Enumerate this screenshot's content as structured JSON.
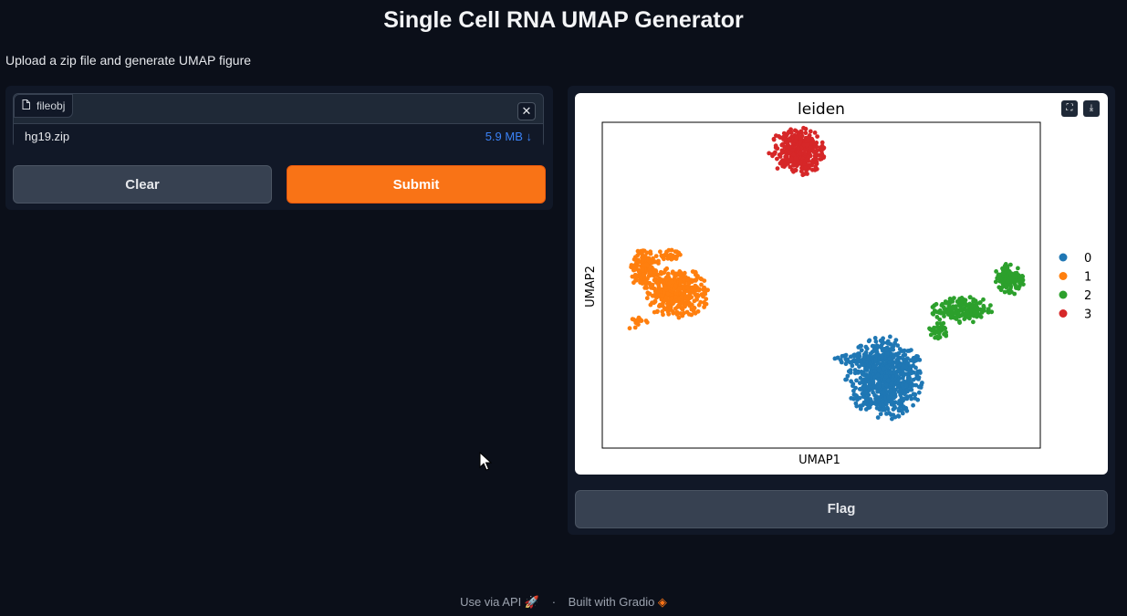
{
  "header": {
    "title": "Single Cell RNA UMAP Generator",
    "description": "Upload a zip file and generate UMAP figure"
  },
  "file_input": {
    "label": "fileobj",
    "file_name": "hg19.zip",
    "file_size": "5.9 MB",
    "download_icon": "download-arrow-icon",
    "clear_icon": "close-icon"
  },
  "buttons": {
    "clear": "Clear",
    "submit": "Submit",
    "flag": "Flag"
  },
  "colors": {
    "accent": "#f97316",
    "background": "#0b0f19",
    "panel": "#111827"
  },
  "output": {
    "fullscreen_icon": "fullscreen-icon",
    "download_icon": "download-icon"
  },
  "chart_data": {
    "type": "scatter",
    "title": "leiden",
    "xlabel": "UMAP1",
    "ylabel": "UMAP2",
    "grid": false,
    "xticks": false,
    "yticks": false,
    "legend_placement": "right",
    "xlim": [
      -10,
      10
    ],
    "ylim": [
      -10,
      10
    ],
    "series": [
      {
        "name": "0",
        "color": "#1f77b4",
        "clusters": [
          {
            "cx": 2.9,
            "cy": -5.7,
            "rx": 1.8,
            "ry": 2.6,
            "n": 700
          },
          {
            "cx": 1.4,
            "cy": -4.6,
            "rx": 0.8,
            "ry": 0.5,
            "n": 40
          }
        ]
      },
      {
        "name": "1",
        "color": "#ff7f0e",
        "clusters": [
          {
            "cx": -6.6,
            "cy": -0.5,
            "rx": 1.5,
            "ry": 1.6,
            "n": 380
          },
          {
            "cx": -8.1,
            "cy": 1.1,
            "rx": 0.7,
            "ry": 1.3,
            "n": 150
          },
          {
            "cx": -8.5,
            "cy": -2.3,
            "rx": 0.6,
            "ry": 0.4,
            "n": 15
          },
          {
            "cx": -7.0,
            "cy": 1.8,
            "rx": 0.6,
            "ry": 0.4,
            "n": 30
          }
        ]
      },
      {
        "name": "2",
        "color": "#2ca02c",
        "clusters": [
          {
            "cx": 6.4,
            "cy": -1.5,
            "rx": 1.4,
            "ry": 0.9,
            "n": 170
          },
          {
            "cx": 8.6,
            "cy": 0.4,
            "rx": 0.7,
            "ry": 1.0,
            "n": 130
          },
          {
            "cx": 5.3,
            "cy": -2.8,
            "rx": 0.5,
            "ry": 0.6,
            "n": 30
          }
        ]
      },
      {
        "name": "3",
        "color": "#d62728",
        "clusters": [
          {
            "cx": -1.1,
            "cy": 8.2,
            "rx": 1.3,
            "ry": 1.5,
            "n": 320
          }
        ]
      }
    ]
  }
}
